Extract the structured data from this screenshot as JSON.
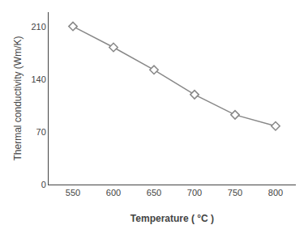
{
  "chart_data": {
    "type": "line",
    "x": [
      550,
      600,
      650,
      700,
      750,
      800
    ],
    "values": [
      211,
      183,
      153,
      120,
      93,
      78
    ],
    "xlabel": "Temperature ( °C )",
    "ylabel": "Thermal conductivity (Wm/K)",
    "xlim": [
      520,
      825
    ],
    "ylim": [
      0,
      230
    ],
    "xticks": [
      550,
      600,
      650,
      700,
      750,
      800
    ],
    "yticks": [
      0,
      70,
      140,
      210
    ],
    "color": "#888888",
    "marker": "diamond",
    "grid": false
  }
}
